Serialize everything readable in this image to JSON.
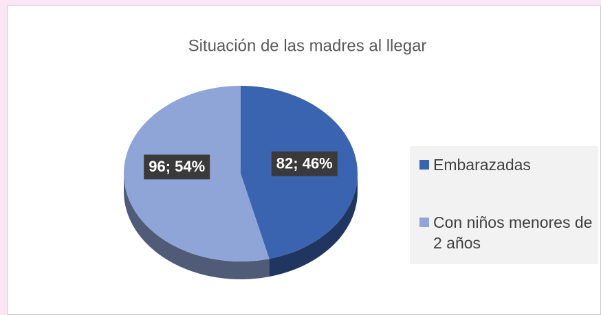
{
  "chart_data": {
    "type": "pie",
    "title": "Situación de las madres al llegar",
    "categories": [
      "Embarazadas",
      "Con niños menores de 2 años"
    ],
    "values": [
      82,
      96
    ],
    "value_labels": [
      "82; 46%",
      "96; 54%"
    ],
    "colors": [
      "#3a63b0",
      "#8fa5d8"
    ],
    "legend": "right"
  }
}
